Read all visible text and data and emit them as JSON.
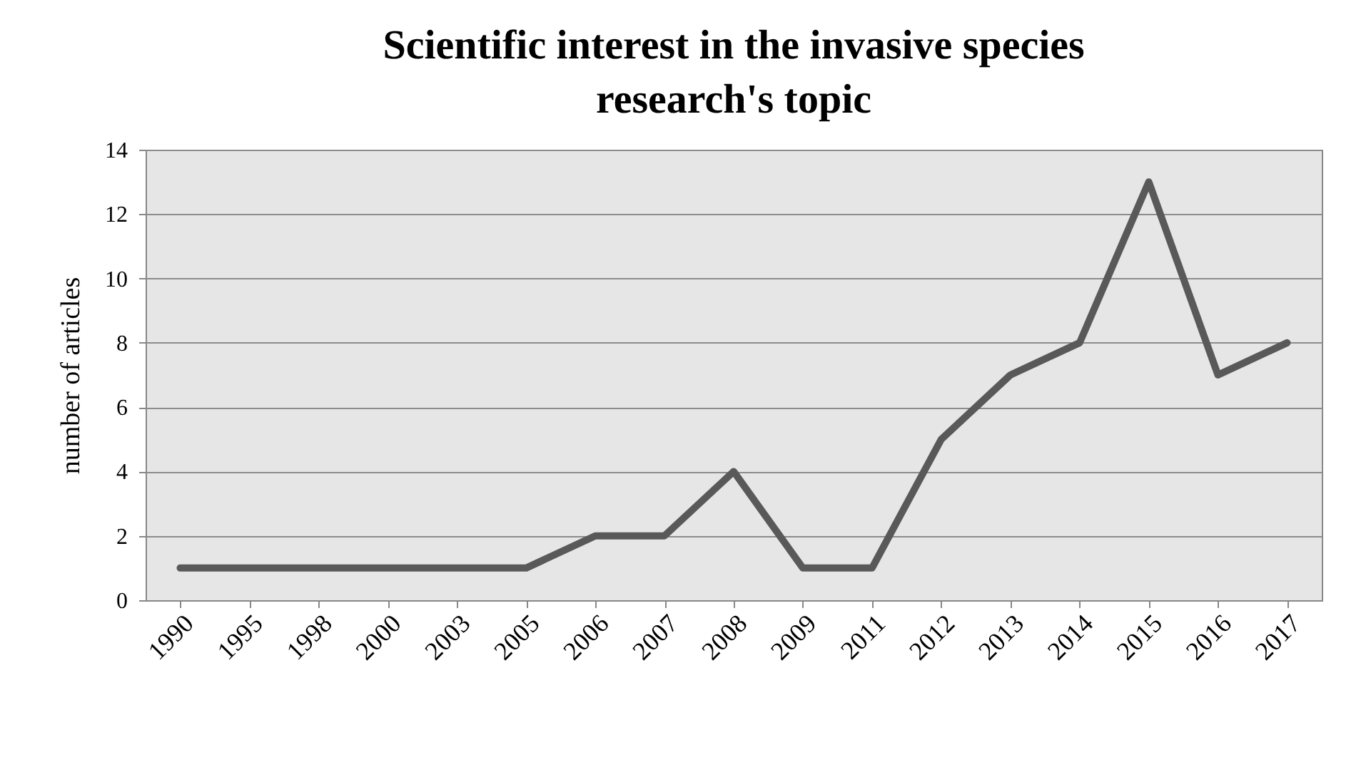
{
  "chart_data": {
    "type": "line",
    "title": [
      "Scientific interest in the invasive species",
      "research's topic"
    ],
    "ylabel": "number of articles",
    "categories": [
      "1990",
      "1995",
      "1998",
      "2000",
      "2003",
      "2005",
      "2006",
      "2007",
      "2008",
      "2009",
      "2011",
      "2012",
      "2013",
      "2014",
      "2015",
      "2016",
      "2017"
    ],
    "series": [
      {
        "color": "#595959",
        "values": [
          1,
          1,
          1,
          1,
          1,
          1,
          2,
          2,
          4,
          1,
          1,
          5,
          7,
          8,
          13,
          7,
          8
        ]
      }
    ],
    "ylim": [
      0,
      14
    ],
    "yticks": [
      0,
      2,
      4,
      6,
      8,
      10,
      12,
      14
    ],
    "grid": "y",
    "marker": "none",
    "line_style": "solid"
  }
}
